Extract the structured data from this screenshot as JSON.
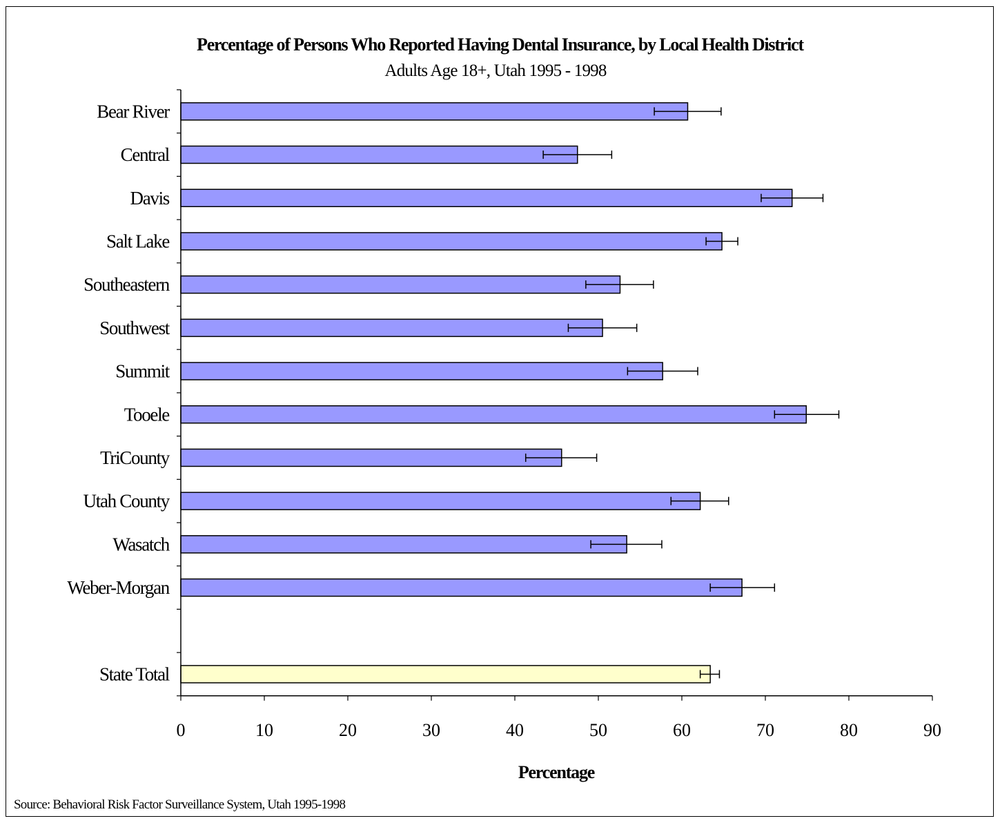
{
  "chart_data": {
    "type": "bar",
    "orientation": "horizontal",
    "title": "Percentage of Persons Who Reported Having Dental Insurance, by Local Health District",
    "subtitle": "Adults Age 18+, Utah 1995 - 1998",
    "xlabel": "Percentage",
    "ylabel": "",
    "xlim": [
      0,
      90
    ],
    "xticks": [
      0,
      10,
      20,
      30,
      40,
      50,
      60,
      70,
      80,
      90
    ],
    "grid": false,
    "colors": {
      "district_bar": "#9999ff",
      "state_bar": "#ffffcc",
      "outline": "#000000"
    },
    "categories": [
      "Bear River",
      "Central",
      "Davis",
      "Salt Lake",
      "Southeastern",
      "Southwest",
      "Summit",
      "Tooele",
      "TriCounty",
      "Utah County",
      "Wasatch",
      "Weber-Morgan",
      "",
      "State Total"
    ],
    "values": [
      60.7,
      47.5,
      73.2,
      64.8,
      52.6,
      50.5,
      57.7,
      74.9,
      45.6,
      62.2,
      53.4,
      67.2,
      null,
      63.4
    ],
    "ci_low": [
      56.7,
      43.4,
      69.5,
      62.9,
      48.5,
      46.4,
      53.5,
      71.1,
      41.3,
      58.7,
      49.1,
      63.4,
      null,
      62.2
    ],
    "ci_high": [
      64.7,
      51.6,
      76.9,
      66.7,
      56.6,
      54.6,
      61.9,
      78.8,
      49.8,
      65.6,
      57.6,
      71.1,
      null,
      64.5
    ]
  },
  "source_note": "Source: Behavioral Risk Factor Surveillance System, Utah 1995-1998"
}
